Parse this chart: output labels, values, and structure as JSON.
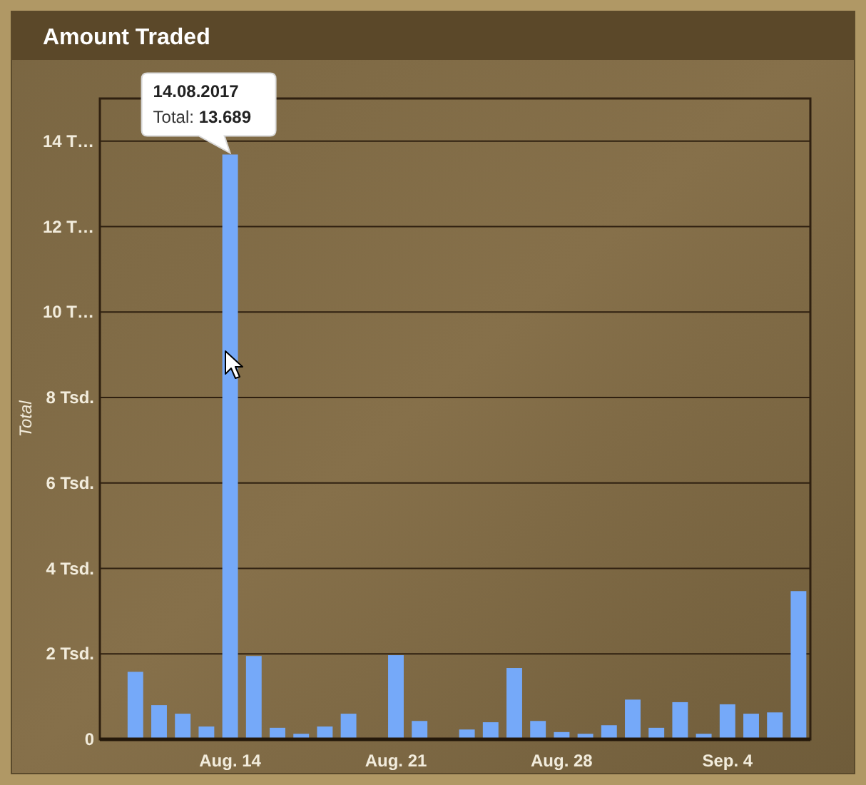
{
  "chart_data": {
    "type": "bar",
    "title": "Amount Traded",
    "ylabel": "Total",
    "x": [
      "2017-08-10",
      "2017-08-11",
      "2017-08-12",
      "2017-08-13",
      "2017-08-14",
      "2017-08-15",
      "2017-08-16",
      "2017-08-17",
      "2017-08-18",
      "2017-08-19",
      "2017-08-20",
      "2017-08-21",
      "2017-08-22",
      "2017-08-23",
      "2017-08-24",
      "2017-08-25",
      "2017-08-26",
      "2017-08-27",
      "2017-08-28",
      "2017-08-29",
      "2017-08-30",
      "2017-08-31",
      "2017-09-01",
      "2017-09-02",
      "2017-09-03",
      "2017-09-04",
      "2017-09-05",
      "2017-09-06",
      "2017-09-07"
    ],
    "values": [
      1.58,
      0.8,
      0.6,
      0.3,
      13.689,
      1.95,
      0.27,
      0.13,
      0.3,
      0.6,
      null,
      1.97,
      0.43,
      null,
      0.23,
      0.4,
      1.67,
      0.43,
      0.17,
      0.13,
      0.33,
      0.93,
      0.27,
      0.87,
      0.13,
      0.82,
      0.6,
      0.63,
      3.47
    ],
    "color": "#75a9f9",
    "xlim": [
      "2017-08-08T12:00",
      "2017-09-07T12:00"
    ],
    "xticks": [
      {
        "value": "2017-08-14",
        "label": "Aug. 14"
      },
      {
        "value": "2017-08-21",
        "label": "Aug. 21"
      },
      {
        "value": "2017-08-28",
        "label": "Aug. 28"
      },
      {
        "value": "2017-09-04",
        "label": "Sep. 4"
      }
    ],
    "ylim": [
      0,
      15
    ],
    "yticks": [
      0,
      {
        "value": 2,
        "label": "2 Tsd."
      },
      {
        "value": 4,
        "label": "4 Tsd."
      },
      {
        "value": 6,
        "label": "6 Tsd."
      },
      {
        "value": 8,
        "label": "8 Tsd."
      },
      {
        "value": 10,
        "label": "10 T…"
      },
      {
        "value": 12,
        "label": "12 T…"
      },
      {
        "value": 14,
        "label": "14 T…"
      }
    ],
    "grid": "y",
    "annotations": [
      {
        "text": "14.08.2017\nTotal: 13.689",
        "x": "2017-08-14",
        "y": 13.689
      }
    ]
  }
}
